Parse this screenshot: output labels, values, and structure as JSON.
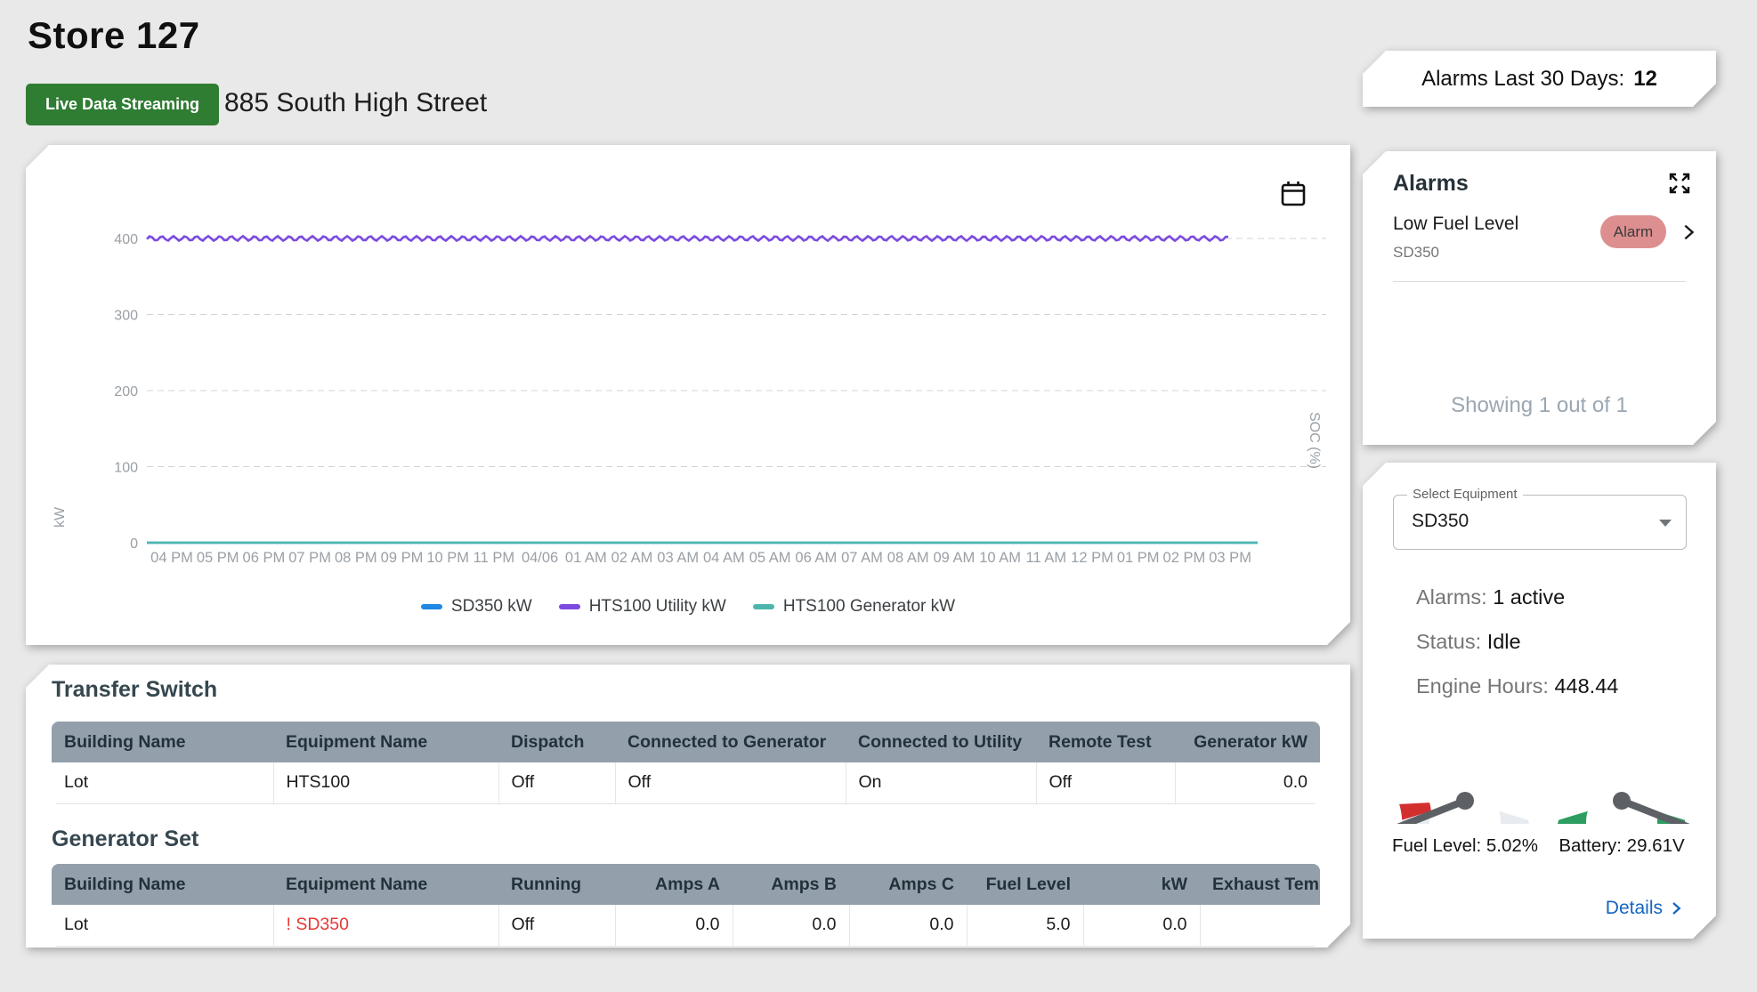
{
  "header": {
    "title": "Store 127",
    "badge": "Live Data Streaming",
    "badge_color": "#2e7d32",
    "address": "885 South High Street"
  },
  "chart_data": {
    "type": "line",
    "ylabel_left": "kW",
    "ylabel_right": "SOC (%)",
    "ylim": [
      0,
      400
    ],
    "yticks": [
      0,
      100,
      200,
      300,
      400
    ],
    "grid": "dashed horizontal gridlines",
    "legend_position": "bottom center",
    "x_ticks": [
      "04 PM",
      "05 PM",
      "06 PM",
      "07 PM",
      "08 PM",
      "09 PM",
      "10 PM",
      "11 PM",
      "04/06",
      "01 AM",
      "02 AM",
      "03 AM",
      "04 AM",
      "05 AM",
      "06 AM",
      "07 AM",
      "08 AM",
      "09 AM",
      "10 AM",
      "11 AM",
      "12 PM",
      "01 PM",
      "02 PM",
      "03 PM"
    ],
    "series": [
      {
        "name": "SD350 kW",
        "color": "#1e88e5",
        "approx_value_kw": 0,
        "ripple_kw": 0
      },
      {
        "name": "HTS100 Utility kW",
        "color": "#7c4ae0",
        "approx_value_kw": 400,
        "ripple_kw": 3
      },
      {
        "name": "HTS100 Generator kW",
        "color": "#4cb6ac",
        "approx_value_kw": 0,
        "ripple_kw": 0
      }
    ]
  },
  "alarms_summary": {
    "label": "Alarms Last 30 Days:",
    "value": "12"
  },
  "alarms_panel": {
    "title": "Alarms",
    "items": [
      {
        "name": "Low Fuel Level",
        "equipment": "SD350",
        "badge": "Alarm"
      }
    ],
    "badge_color": "#dd8f8f",
    "footer": "Showing 1 out of 1"
  },
  "equipment_panel": {
    "select_label": "Select Equipment",
    "select_value": "SD350",
    "stats": [
      {
        "label": "Alarms: ",
        "value": "1 active"
      },
      {
        "label": "Status: ",
        "value": "Idle"
      },
      {
        "label": "Engine Hours: ",
        "value": "448.44"
      }
    ],
    "gauges": [
      {
        "name": "fuel-gauge",
        "label": "Fuel Level: 5.02%",
        "band_color": "#e8ecf0",
        "alert_color": "#d32f2f",
        "needle": "low"
      },
      {
        "name": "battery-gauge",
        "label": "Battery: 29.61V",
        "band_color": "#2e9e60",
        "needle": "high"
      }
    ],
    "details_label": "Details"
  },
  "tables": {
    "transfer_switch": {
      "title": "Transfer Switch",
      "headers": [
        "Building Name",
        "Equipment Name",
        "Dispatch",
        "Connected to Generator",
        "Connected to Utility",
        "Remote Test",
        "Generator kW"
      ],
      "rows": [
        [
          "Lot",
          "HTS100",
          "Off",
          "Off",
          "On",
          "Off",
          "0.0"
        ]
      ]
    },
    "generator_set": {
      "title": "Generator Set",
      "headers": [
        "Building Name",
        "Equipment Name",
        "Running",
        "Amps A",
        "Amps B",
        "Amps C",
        "Fuel Level",
        "kW",
        "Exhaust Temp"
      ],
      "rows": [
        [
          "Lot",
          "! SD350",
          "Off",
          "0.0",
          "0.0",
          "0.0",
          "5.0",
          "0.0",
          ""
        ]
      ]
    }
  }
}
